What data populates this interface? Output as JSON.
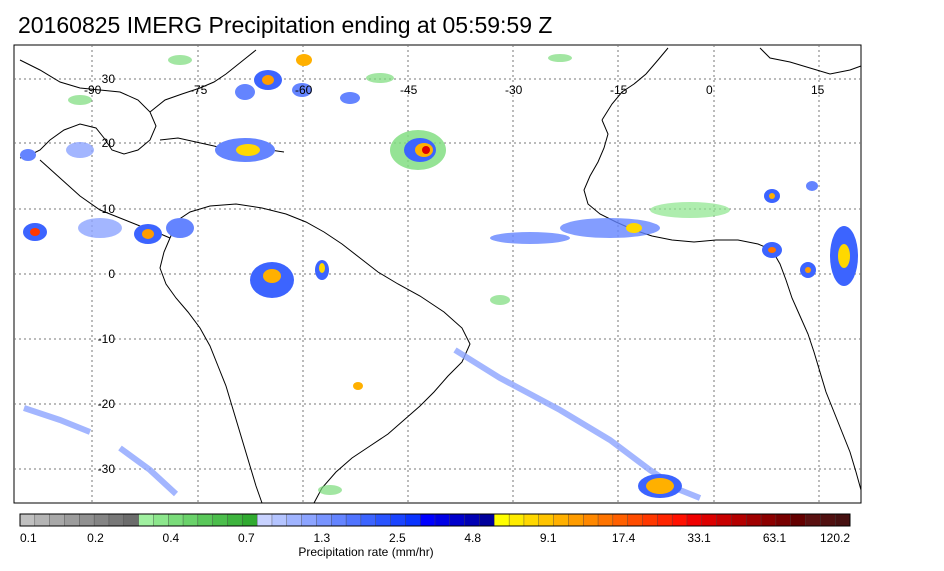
{
  "title": "20160825 IMERG Precipitation ending at 05:59:59 Z",
  "colorbar": {
    "label": "Precipitation rate (mm/hr)",
    "ticks": [
      "0.1",
      "0.2",
      "0.4",
      "0.7",
      "1.3",
      "2.5",
      "4.8",
      "9.1",
      "17.4",
      "33.1",
      "63.1",
      "120.2"
    ],
    "colors": [
      "#c0c0c0",
      "#b4b4b4",
      "#a8a8a8",
      "#9c9c9c",
      "#909090",
      "#848484",
      "#787878",
      "#6c6c6c",
      "#a0f0a0",
      "#8ce68c",
      "#7adc7a",
      "#6ad26a",
      "#5ac85a",
      "#4cbe4c",
      "#3eb43e",
      "#30aa30",
      "#c8d2ff",
      "#b4c4ff",
      "#a0b4ff",
      "#8ca4ff",
      "#7894ff",
      "#6484ff",
      "#5074ff",
      "#3c64ff",
      "#2a54ff",
      "#1a44ff",
      "#0a34ff",
      "#0000ff",
      "#0000e6",
      "#0000cc",
      "#0000b4",
      "#00009c",
      "#ffff00",
      "#ffec00",
      "#ffd800",
      "#ffc400",
      "#ffb000",
      "#ff9c00",
      "#ff8800",
      "#ff7400",
      "#ff6000",
      "#ff4c00",
      "#ff3800",
      "#ff2400",
      "#ff1000",
      "#f00000",
      "#dc0000",
      "#c80000",
      "#b40000",
      "#a00000",
      "#8c0000",
      "#780000",
      "#640000",
      "#5a1010",
      "#501010",
      "#461010"
    ]
  },
  "map": {
    "lon_labels": [
      "-90",
      "-75",
      "-60",
      "-45",
      "-30",
      "-15",
      "0",
      "15"
    ],
    "lat_labels": [
      "30",
      "20",
      "10",
      "0",
      "-10",
      "-20",
      "-30"
    ]
  }
}
